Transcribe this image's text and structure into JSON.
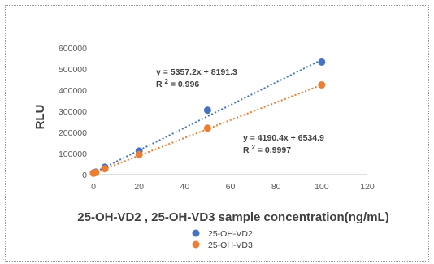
{
  "chart_data": {
    "type": "scatter",
    "xlabel": "25-OH-VD2 , 25-OH-VD3 sample concentration(ng/mL)",
    "ylabel": "RLU",
    "xlim": [
      0,
      120
    ],
    "ylim": [
      0,
      600000
    ],
    "x_ticks": [
      "0",
      "20",
      "40",
      "60",
      "80",
      "100",
      "120"
    ],
    "y_ticks": [
      "0",
      "100000",
      "200000",
      "300000",
      "400000",
      "500000",
      "600000"
    ],
    "grid": false,
    "legend_position": "bottom",
    "series": [
      {
        "name": "25-OH-VD2",
        "color": "#4472C4",
        "x": [
          0,
          1,
          5,
          20,
          50,
          100
        ],
        "y": [
          8000,
          12000,
          35000,
          112000,
          305000,
          533000
        ],
        "trendline": {
          "slope": 5357.2,
          "intercept": 8191.3
        },
        "equation": "y = 5357.2x + 8191.3",
        "r2_prefix": "R ",
        "r2_sup": "2",
        "r2_value": " = 0.996"
      },
      {
        "name": "25-OH-VD3",
        "color": "#ED7D31",
        "x": [
          0,
          1,
          5,
          20,
          50,
          100
        ],
        "y": [
          6500,
          10000,
          28000,
          95000,
          220000,
          425000
        ],
        "trendline": {
          "slope": 4190.4,
          "intercept": 6534.9
        },
        "equation": "y = 4190.4x + 6534.9",
        "r2_prefix": "R ",
        "r2_sup": "2",
        "r2_value": " = 0.9997"
      }
    ]
  }
}
